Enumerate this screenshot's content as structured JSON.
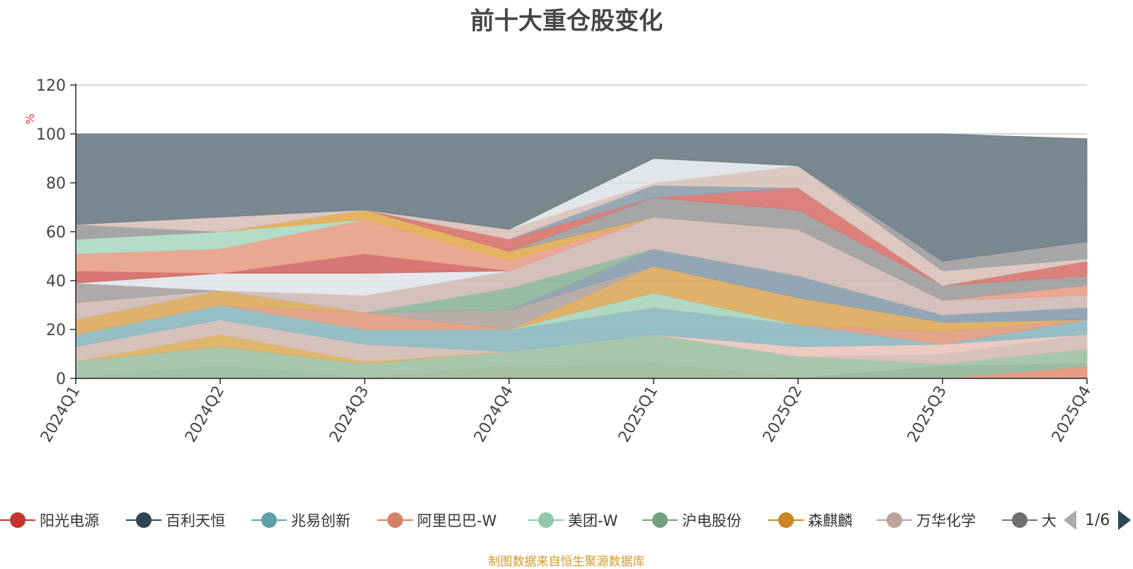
{
  "chart_data": {
    "type": "area",
    "title": "前十大重仓股变化",
    "ylabel": "%",
    "ylim": [
      0,
      120
    ],
    "yticks": [
      0,
      20,
      40,
      60,
      80,
      100,
      120
    ],
    "categories": [
      "2024Q1",
      "2024Q2",
      "2024Q3",
      "2024Q4",
      "2025Q1",
      "2025Q2",
      "2025Q3",
      "2025Q4"
    ],
    "grid": true,
    "stacked": true,
    "layers": [
      {
        "color": "#d14a4a",
        "upper": [
          0,
          5,
          0,
          0,
          0,
          0,
          0,
          0
        ]
      },
      {
        "color": "#8eb8be",
        "upper": [
          0,
          0,
          0,
          5,
          6,
          0,
          0,
          0
        ]
      },
      {
        "color": "#e39578",
        "upper": [
          0,
          0,
          0,
          0,
          0,
          0,
          5,
          6
        ]
      },
      {
        "color": "#5f6f7c",
        "upper": [
          0,
          0,
          0,
          0,
          0,
          0,
          0,
          5
        ]
      },
      {
        "color": "#9fc2a5",
        "upper": [
          7,
          13,
          6,
          11,
          18,
          9,
          6,
          12
        ]
      },
      {
        "color": "#ddb062",
        "upper": [
          7,
          18,
          7,
          11,
          18,
          9,
          6,
          12
        ]
      },
      {
        "color": "#d4bdb5",
        "upper": [
          13,
          24,
          14,
          11,
          18,
          9,
          10,
          18
        ]
      },
      {
        "color": "#eac6bd",
        "upper": [
          13,
          24,
          14,
          11,
          18,
          13,
          14,
          18
        ]
      },
      {
        "color": "#8db8bf",
        "upper": [
          18,
          30,
          20,
          20,
          29,
          22,
          14,
          24
        ]
      },
      {
        "color": "#e09c80",
        "upper": [
          18,
          30,
          27,
          20,
          29,
          22,
          19,
          24
        ]
      },
      {
        "color": "#a9d6c0",
        "upper": [
          18,
          30,
          27,
          20,
          35,
          22,
          19,
          24
        ]
      },
      {
        "color": "#dcaa5e",
        "upper": [
          24,
          36,
          27,
          20,
          46,
          33,
          23,
          24
        ]
      },
      {
        "color": "#b2a6a1",
        "upper": [
          24,
          36,
          27,
          28,
          46,
          33,
          23,
          24
        ]
      },
      {
        "color": "#8a9eb0",
        "upper": [
          24,
          36,
          27,
          28,
          53,
          42,
          26,
          29
        ]
      },
      {
        "color": "#8fb59c",
        "upper": [
          24,
          36,
          27,
          37,
          53,
          42,
          26,
          29
        ]
      },
      {
        "color": "#d0bcb6",
        "upper": [
          31,
          36,
          34,
          44,
          66,
          61,
          32,
          34
        ]
      },
      {
        "color": "#a8a3a2",
        "upper": [
          39,
          36,
          34,
          44,
          66,
          61,
          32,
          34
        ]
      },
      {
        "color": "#e2e6ea",
        "upper": [
          39,
          43,
          43,
          44,
          66,
          61,
          32,
          34
        ]
      },
      {
        "color": "#d46b67",
        "upper": [
          44,
          43,
          51,
          44,
          66,
          61,
          32,
          34
        ]
      },
      {
        "color": "#e8a08a",
        "upper": [
          51,
          53,
          65,
          48,
          66,
          61,
          32,
          38
        ]
      },
      {
        "color": "#acdac4",
        "upper": [
          57,
          60,
          65,
          48,
          66,
          61,
          32,
          38
        ]
      },
      {
        "color": "#e2ad55",
        "upper": [
          57,
          60,
          69,
          52,
          66,
          61,
          32,
          38
        ]
      },
      {
        "color": "#9e9e9e",
        "upper": [
          63,
          60,
          69,
          52,
          74,
          69,
          38,
          42
        ]
      },
      {
        "color": "#d97570",
        "upper": [
          63,
          60,
          69,
          57,
          74,
          78,
          38,
          48
        ]
      },
      {
        "color": "#8fa1ae",
        "upper": [
          63,
          60,
          69,
          57,
          79,
          78,
          38,
          48
        ]
      },
      {
        "color": "#d9c3bb",
        "upper": [
          63,
          66,
          69,
          61,
          80,
          87,
          44,
          49
        ]
      },
      {
        "color": "#dfe3e7",
        "upper": [
          63,
          66,
          69,
          61,
          90,
          87,
          44,
          49
        ]
      },
      {
        "color": "#9f9f9f",
        "upper": [
          63,
          66,
          69,
          61,
          90,
          87,
          48,
          56
        ]
      },
      {
        "color": "#6e7d88",
        "upper": [
          100,
          100,
          100,
          100,
          100,
          100,
          100,
          98
        ]
      }
    ],
    "legend": [
      {
        "name": "阳光电源",
        "color": "#c23531"
      },
      {
        "name": "百利天恒",
        "color": "#2f4554"
      },
      {
        "name": "兆易创新",
        "color": "#61a0a8"
      },
      {
        "name": "阿里巴巴-W",
        "color": "#d48265"
      },
      {
        "name": "美团-W",
        "color": "#91c7ae"
      },
      {
        "name": "沪电股份",
        "color": "#749f83"
      },
      {
        "name": "森麒麟",
        "color": "#ca8622"
      },
      {
        "name": "万华化学",
        "color": "#bda29a"
      },
      {
        "name": "大",
        "color": "#6e7074"
      }
    ],
    "legend_page": "1/6",
    "source": "制图数据来自恒生聚源数据库"
  }
}
